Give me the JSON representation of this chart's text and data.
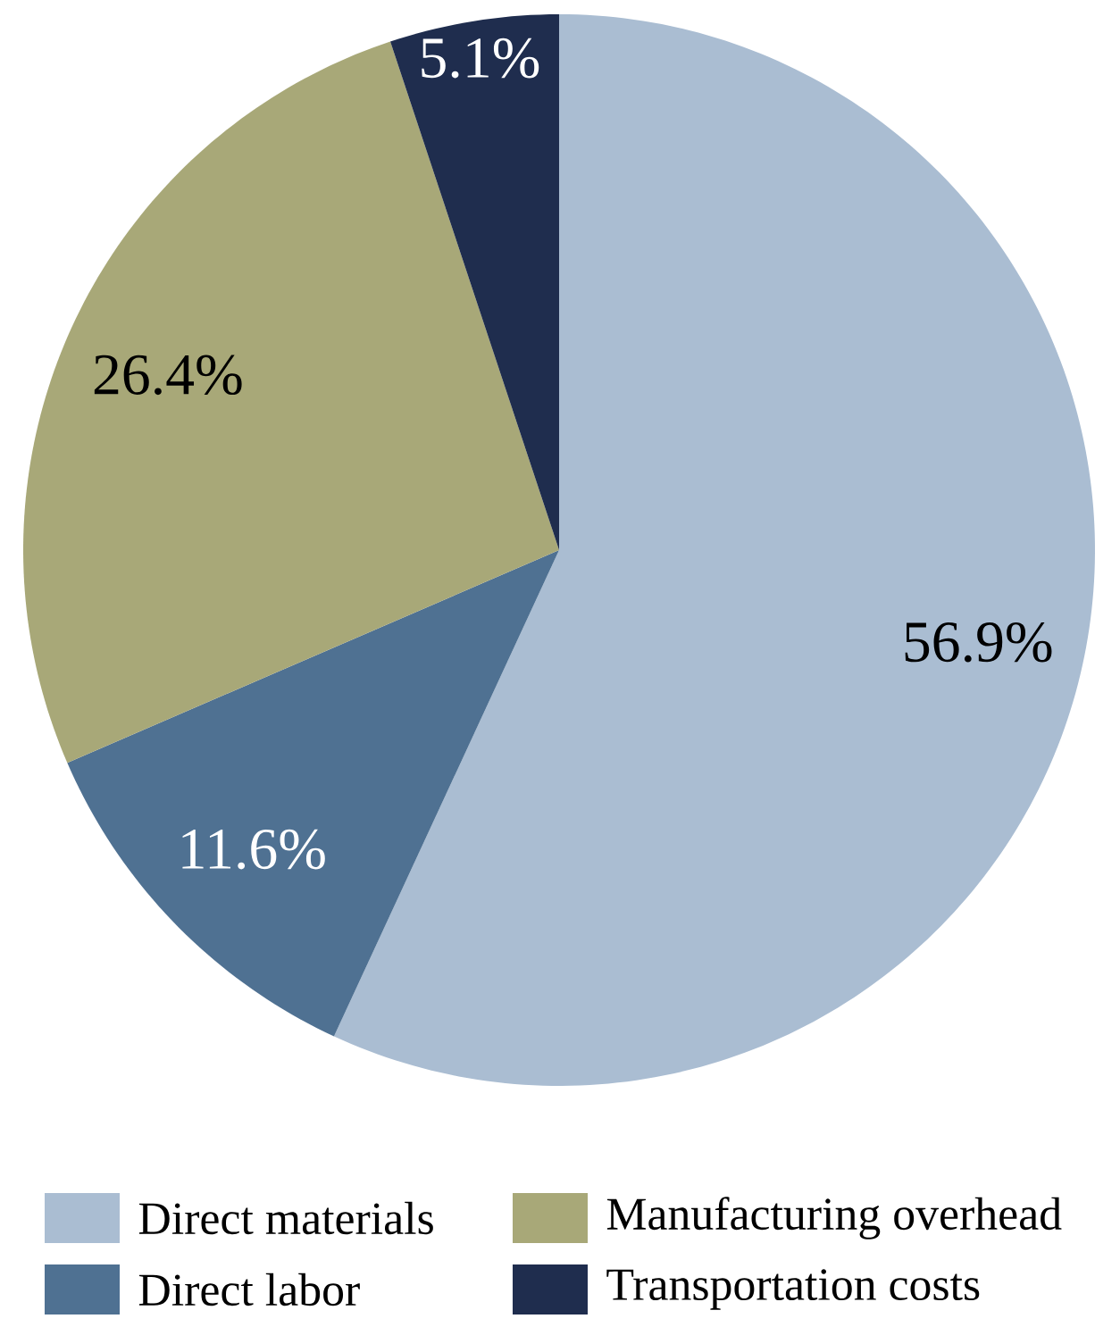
{
  "chart_data": {
    "type": "pie",
    "categories": [
      "Direct materials",
      "Direct labor",
      "Manufacturing overhead",
      "Transportation costs"
    ],
    "values": [
      56.9,
      11.6,
      26.4,
      5.1
    ],
    "value_labels": [
      "56.9%",
      "11.6%",
      "26.4%",
      "5.1%"
    ],
    "colors": [
      "#aabdd2",
      "#4f7192",
      "#a8a878",
      "#1f2d4e"
    ],
    "legend": "bottom"
  }
}
